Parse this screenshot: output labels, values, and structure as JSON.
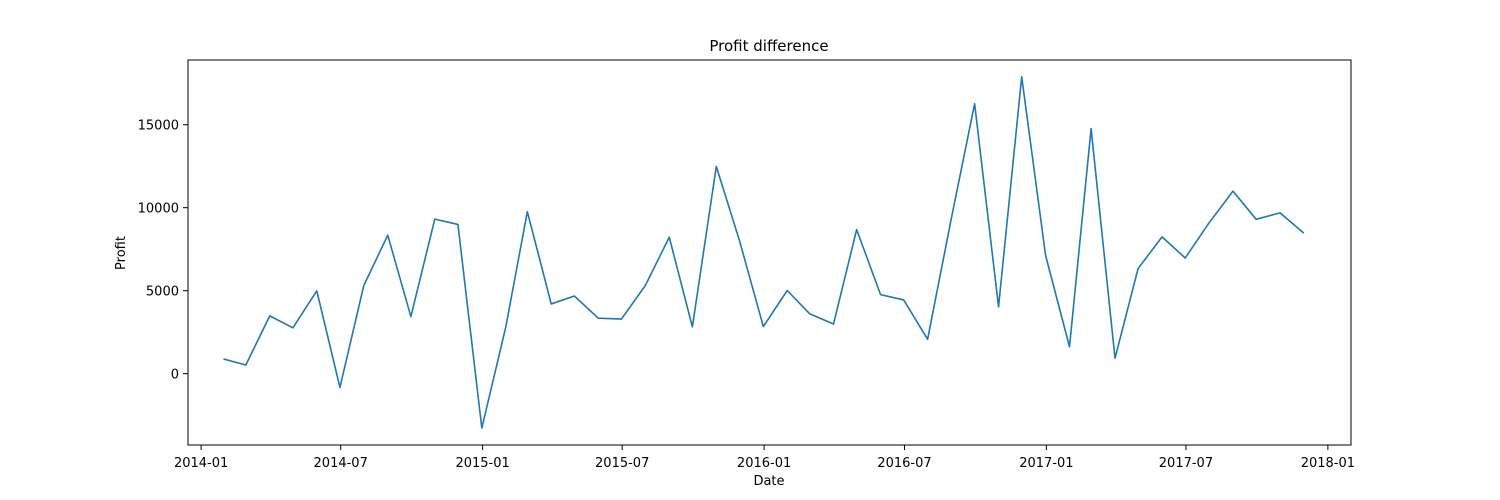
{
  "chart_data": {
    "type": "line",
    "title": "Profit difference",
    "xlabel": "Date",
    "ylabel": "Profit",
    "xlim": [
      "2013-12-15",
      "2018-01-31"
    ],
    "ylim": [
      -4300,
      18900
    ],
    "grid": false,
    "legend": "none",
    "x_ticks": [
      "2014-01",
      "2014-07",
      "2015-01",
      "2015-07",
      "2016-01",
      "2016-07",
      "2017-01",
      "2017-07",
      "2018-01"
    ],
    "y_ticks": [
      0,
      5000,
      10000,
      15000
    ],
    "y_tick_labels": [
      "0",
      "5000",
      "10000",
      "15000"
    ],
    "series": [
      {
        "color": "#1f77b4",
        "x": [
          "2014-01-31",
          "2014-02-28",
          "2014-03-31",
          "2014-04-30",
          "2014-05-31",
          "2014-06-30",
          "2014-07-31",
          "2014-08-31",
          "2014-09-30",
          "2014-10-31",
          "2014-11-30",
          "2014-12-31",
          "2015-01-31",
          "2015-02-28",
          "2015-03-31",
          "2015-04-30",
          "2015-05-31",
          "2015-06-30",
          "2015-07-31",
          "2015-08-31",
          "2015-09-30",
          "2015-10-31",
          "2015-11-30",
          "2015-12-31",
          "2016-01-31",
          "2016-02-29",
          "2016-03-31",
          "2016-04-30",
          "2016-05-31",
          "2016-06-30",
          "2016-07-31",
          "2016-08-31",
          "2016-09-30",
          "2016-10-31",
          "2016-11-30",
          "2016-12-31",
          "2017-01-31",
          "2017-02-28",
          "2017-03-31",
          "2017-04-30",
          "2017-05-31",
          "2017-06-30",
          "2017-07-31",
          "2017-08-31",
          "2017-09-30",
          "2017-10-31",
          "2017-11-30"
        ],
        "values": [
          870,
          520,
          3480,
          2760,
          4990,
          -830,
          5320,
          8340,
          3440,
          9310,
          8990,
          -3280,
          2800,
          9760,
          4200,
          4680,
          3340,
          3290,
          5310,
          8220,
          2820,
          12480,
          8030,
          2840,
          5010,
          3610,
          2990,
          8680,
          4760,
          4440,
          2070,
          9410,
          16260,
          4030,
          17890,
          7120,
          1620,
          14760,
          930,
          6340,
          8240,
          6970,
          9090,
          11000,
          9300,
          9690,
          8500
        ]
      }
    ]
  }
}
